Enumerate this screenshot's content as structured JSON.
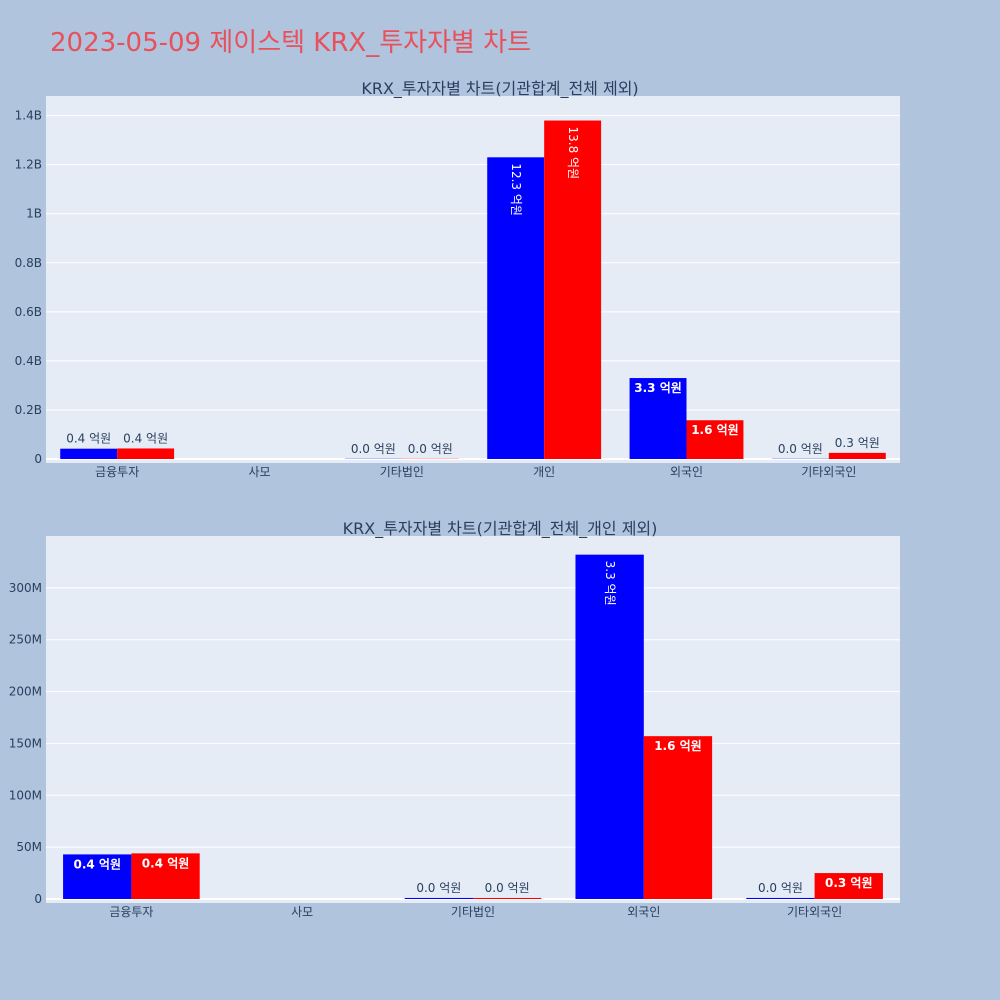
{
  "title": "2023-05-09 제이스텍 KRX_투자자별 차트",
  "colors": {
    "series_a": "#0000ff",
    "series_b": "#ff0000",
    "plot_bg": "#e5ecf6",
    "page_bg": "#b0c4de",
    "title": "#e8505b"
  },
  "chart_data": [
    {
      "type": "bar",
      "title": "KRX_투자자별 차트(기관합계_전체 제외)",
      "categories": [
        "금융투자",
        "사모",
        "기타법인",
        "개인",
        "외국인",
        "기타외국인"
      ],
      "series": [
        {
          "values": [
            42000000,
            0,
            1000000,
            1230000000,
            330000000,
            1000000
          ],
          "labels": [
            "0.4 억원",
            "",
            "0.0 억원",
            "12.3 억원",
            "3.3 억원",
            "0.0 억원"
          ]
        },
        {
          "values": [
            43000000,
            0,
            1000000,
            1380000000,
            158000000,
            25000000
          ],
          "labels": [
            "0.4 억원",
            "",
            "0.0 억원",
            "13.8 억원",
            "1.6 억원",
            "0.3 억원"
          ]
        }
      ],
      "ylim": [
        0,
        1480000000
      ],
      "yticks": [
        0,
        200000000,
        400000000,
        600000000,
        800000000,
        1000000000,
        1200000000,
        1400000000
      ],
      "ytick_labels": [
        "0",
        "0.2B",
        "0.4B",
        "0.6B",
        "0.8B",
        "1B",
        "1.2B",
        "1.4B"
      ],
      "grid": true
    },
    {
      "type": "bar",
      "title": "KRX_투자자별 차트(기관합계_전체_개인 제외)",
      "categories": [
        "금융투자",
        "사모",
        "기타법인",
        "외국인",
        "기타외국인"
      ],
      "series": [
        {
          "values": [
            43000000,
            0,
            1000000,
            332000000,
            1000000
          ],
          "labels": [
            "0.4 억원",
            "",
            "0.0 억원",
            "3.3 억원",
            "0.0 억원"
          ]
        },
        {
          "values": [
            44000000,
            0,
            1000000,
            157000000,
            25000000
          ],
          "labels": [
            "0.4 억원",
            "",
            "0.0 억원",
            "1.6 억원",
            "0.3 억원"
          ]
        }
      ],
      "ylim": [
        0,
        350000000
      ],
      "yticks": [
        0,
        50000000,
        100000000,
        150000000,
        200000000,
        250000000,
        300000000
      ],
      "ytick_labels": [
        "0",
        "50M",
        "100M",
        "150M",
        "200M",
        "250M",
        "300M"
      ],
      "grid": true
    }
  ]
}
